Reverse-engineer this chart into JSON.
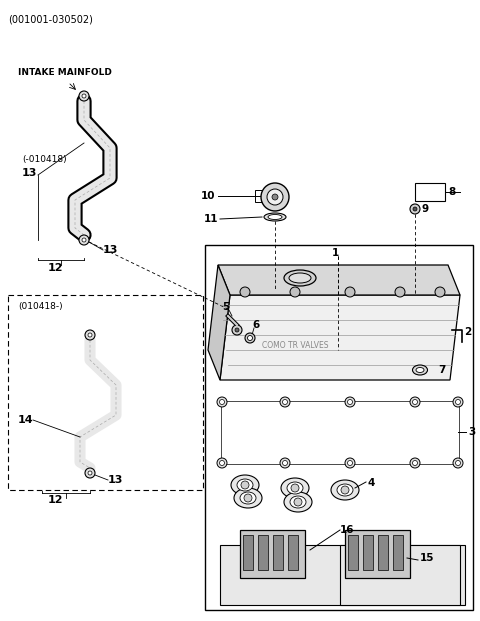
{
  "bg_color": "#ffffff",
  "lc": "#000000",
  "header": "(001001-030502)",
  "intake_label": "INTAKE MAINFOLD",
  "date1": "(-010418)",
  "date2": "(010418-)",
  "figsize": [
    4.8,
    6.21
  ],
  "dpi": 100
}
